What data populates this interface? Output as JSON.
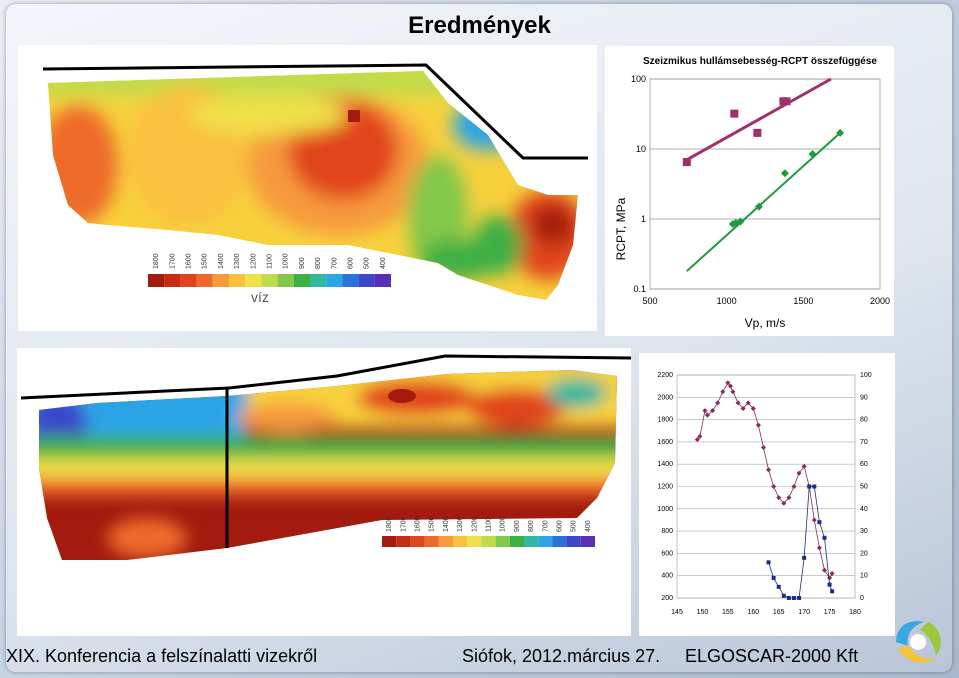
{
  "slide": {
    "title": "Eredmények",
    "footer_left": "XIX. Konferencia a felszínalatti vizekről",
    "footer_mid": "Siófok, 2012.március 27.",
    "footer_right": "ELGOSCAR-2000 Kft"
  },
  "legend_top": {
    "labels": [
      "1800",
      "1700",
      "1600",
      "1500",
      "1400",
      "1300",
      "1200",
      "1100",
      "1000",
      "900",
      "800",
      "700",
      "600",
      "500",
      "400"
    ],
    "caption": "víz",
    "colors": [
      "#a31a0e",
      "#c72c12",
      "#e1441c",
      "#ee6a2c",
      "#f79a3c",
      "#fbc040",
      "#f0e04a",
      "#bfdc4c",
      "#82c84a",
      "#3caf45",
      "#33b7a0",
      "#2ca4e6",
      "#2b73d7",
      "#3b48c9",
      "#5a2fb5"
    ]
  },
  "legend_bottom": {
    "labels": [
      "1800",
      "1700",
      "1600",
      "1500",
      "1400",
      "1300",
      "1200",
      "1100",
      "1000",
      "900",
      "800",
      "700",
      "600",
      "500",
      "400"
    ],
    "colors": [
      "#a31a0e",
      "#c72c12",
      "#e1441c",
      "#ee6a2c",
      "#f79a3c",
      "#fbc040",
      "#f0e04a",
      "#bfdc4c",
      "#82c84a",
      "#3caf45",
      "#33b7a0",
      "#2ca4e6",
      "#2b73d7",
      "#3b48c9",
      "#5a2fb5"
    ]
  },
  "chart_data": [
    {
      "type": "scatter",
      "title": "Szeizmikus hullámsebesség-RCPT összefüggése",
      "xlabel": "Vp, m/s",
      "ylabel": "RCPT, MPa",
      "xlim": [
        500,
        2000
      ],
      "ylim": [
        0.1,
        100
      ],
      "y_scale": "log",
      "x_ticks": [
        "500",
        "1000",
        "1500",
        "2000"
      ],
      "y_ticks": [
        "0.1",
        "1",
        "10",
        "100"
      ],
      "grid": true,
      "series": [
        {
          "marker": "square",
          "color": "#a0306a",
          "points": [
            [
              740,
              6.5
            ],
            [
              1050,
              32
            ],
            [
              1200,
              17
            ],
            [
              1370,
              48
            ],
            [
              1390,
              48
            ]
          ],
          "trend": [
            [
              740,
              7
            ],
            [
              1680,
              100
            ]
          ]
        },
        {
          "marker": "diamond",
          "color": "#1f9a3c",
          "points": [
            [
              1040,
              0.85
            ],
            [
              1060,
              0.88
            ],
            [
              1090,
              0.92
            ],
            [
              1210,
              1.5
            ],
            [
              1380,
              4.5
            ],
            [
              1560,
              8.5
            ],
            [
              1740,
              17
            ]
          ],
          "trend": [
            [
              740,
              0.18
            ],
            [
              1740,
              17
            ]
          ]
        }
      ]
    },
    {
      "type": "line",
      "xlim": [
        145,
        180
      ],
      "x_ticks": [
        "145",
        "150",
        "155",
        "160",
        "165",
        "170",
        "175",
        "180"
      ],
      "y_left_ticks": [
        "200",
        "400",
        "600",
        "800",
        "1000",
        "1200",
        "1400",
        "1600",
        "1800",
        "2000",
        "2200"
      ],
      "y_right_ticks": [
        "0",
        "10",
        "20",
        "30",
        "40",
        "50",
        "60",
        "70",
        "80",
        "90",
        "100"
      ],
      "grid": true,
      "series": [
        {
          "axis": "left",
          "marker": "diamond",
          "color": "#8a2a5a",
          "points": [
            [
              149,
              1620
            ],
            [
              149.5,
              1650
            ],
            [
              150.5,
              1880
            ],
            [
              151,
              1840
            ],
            [
              152,
              1880
            ],
            [
              153,
              1950
            ],
            [
              154,
              2050
            ],
            [
              155,
              2130
            ],
            [
              155.5,
              2100
            ],
            [
              156,
              2050
            ],
            [
              157,
              1950
            ],
            [
              158,
              1900
            ],
            [
              159,
              1950
            ],
            [
              160,
              1900
            ],
            [
              161,
              1750
            ],
            [
              162,
              1550
            ],
            [
              163,
              1350
            ],
            [
              164,
              1200
            ],
            [
              165,
              1100
            ],
            [
              166,
              1050
            ],
            [
              167,
              1100
            ],
            [
              168,
              1200
            ],
            [
              169,
              1320
            ],
            [
              170,
              1380
            ],
            [
              171,
              1200
            ],
            [
              172,
              900
            ],
            [
              173,
              650
            ],
            [
              174,
              450
            ],
            [
              175,
              380
            ],
            [
              175.5,
              420
            ]
          ]
        },
        {
          "axis": "right",
          "marker": "square",
          "color": "#1f2a8a",
          "points": [
            [
              163,
              16
            ],
            [
              164,
              9
            ],
            [
              165,
              5
            ],
            [
              166,
              1
            ],
            [
              167,
              0
            ],
            [
              168,
              0
            ],
            [
              169,
              0
            ],
            [
              170,
              18
            ],
            [
              171,
              50
            ],
            [
              172,
              50
            ],
            [
              173,
              34
            ],
            [
              174,
              27
            ],
            [
              175,
              6
            ],
            [
              175.5,
              3
            ]
          ]
        }
      ]
    }
  ]
}
